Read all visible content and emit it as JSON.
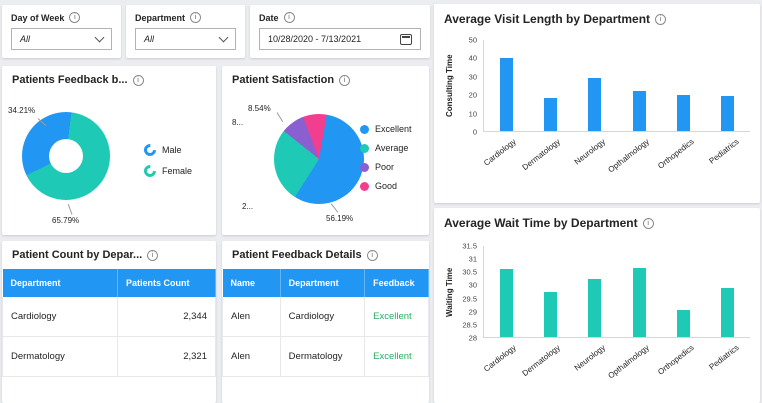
{
  "colors": {
    "blue": "#2196F3",
    "teal": "#1EC9B6",
    "purple": "#8A5FD0",
    "pink": "#F23E8E",
    "green": "#27AE60",
    "table_header_blue": "#2196F3"
  },
  "filters": {
    "day_of_week": {
      "label": "Day of Week",
      "value": "All"
    },
    "department": {
      "label": "Department",
      "value": "All"
    },
    "date": {
      "label": "Date",
      "value": "10/28/2020 - 7/13/2021"
    }
  },
  "chart_data": [
    {
      "id": "gender_donut",
      "type": "pie",
      "donut": true,
      "title": "Patients Feedback b...",
      "labels": [
        "Male",
        "Female"
      ],
      "values": [
        34.21,
        65.79
      ],
      "data_labels": [
        "34.21%",
        "65.79%"
      ],
      "colors": [
        "#2196F3",
        "#1EC9B6"
      ],
      "legend_position": "right"
    },
    {
      "id": "satisfaction_pie",
      "type": "pie",
      "donut": false,
      "title": "Patient Satisfaction",
      "labels": [
        "Excellent",
        "Average",
        "Poor",
        "Good"
      ],
      "values": [
        56.19,
        26.73,
        8.54,
        8.54
      ],
      "data_labels": [
        "56.19%",
        "2...",
        "8...",
        "8.54%"
      ],
      "colors": [
        "#2196F3",
        "#1EC9B6",
        "#8A5FD0",
        "#F23E8E"
      ],
      "legend_position": "right"
    },
    {
      "id": "visit_length_bar",
      "type": "bar",
      "title": "Average Visit Length by Department",
      "categories": [
        "Cardiology",
        "Dermatology",
        "Neurology",
        "Opthalmology",
        "Orthopedics",
        "Pediatrics"
      ],
      "values": [
        40,
        18,
        29,
        22,
        20,
        19
      ],
      "ylabel": "Consulting Time",
      "ylim": [
        0,
        50
      ],
      "yticks": [
        0,
        10,
        20,
        30,
        40,
        50
      ],
      "bar_color": "#2196F3",
      "grid": false,
      "legend_position": "none"
    },
    {
      "id": "wait_time_bar",
      "type": "bar",
      "title": "Average Wait Time by Department",
      "categories": [
        "Cardiology",
        "Dermatology",
        "Neurology",
        "Opthalmology",
        "Orthopedics",
        "Pediatrics"
      ],
      "values": [
        30.6,
        29.75,
        30.25,
        30.65,
        29.05,
        29.9
      ],
      "ylabel": "Waiting Time",
      "ylim": [
        28,
        31.5
      ],
      "yticks": [
        28,
        28.5,
        29,
        29.5,
        30,
        30.5,
        31,
        31.5
      ],
      "bar_color": "#1EC9B6",
      "grid": false,
      "legend_position": "none"
    }
  ],
  "tables": {
    "patient_count": {
      "title": "Patient Count by Depar...",
      "headers": [
        "Department",
        "Patients Count"
      ],
      "rows": [
        [
          "Cardiology",
          "2,344"
        ],
        [
          "Dermatology",
          "2,321"
        ]
      ]
    },
    "feedback_details": {
      "title": "Patient Feedback Details",
      "headers": [
        "Name",
        "Department",
        "Feedback"
      ],
      "rows": [
        [
          "Alen",
          "Cardiology",
          "Excellent"
        ],
        [
          "Alen",
          "Dermatology",
          "Excellent"
        ]
      ]
    }
  }
}
